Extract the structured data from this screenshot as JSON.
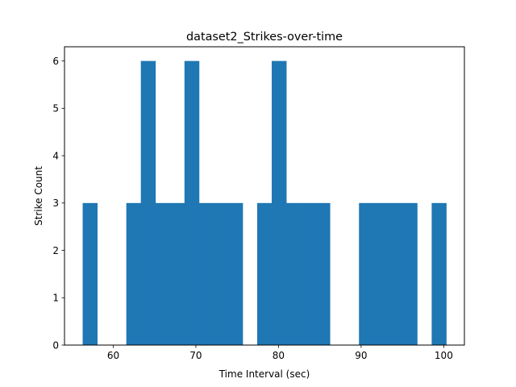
{
  "chart_data": {
    "type": "bar",
    "title": "dataset2_Strikes-over-time",
    "xlabel": "Time Interval (sec)",
    "ylabel": "Strike Count",
    "xlim": [
      54.1,
      102.5
    ],
    "ylim": [
      0,
      6.3
    ],
    "xticks": [
      60,
      70,
      80,
      90,
      100
    ],
    "yticks": [
      0,
      1,
      2,
      3,
      4,
      5,
      6
    ],
    "bin_width": 1.76,
    "bins": [
      {
        "x": 56.3,
        "count": 3
      },
      {
        "x": 58.06,
        "count": 0
      },
      {
        "x": 59.82,
        "count": 0
      },
      {
        "x": 61.58,
        "count": 3
      },
      {
        "x": 63.34,
        "count": 6
      },
      {
        "x": 65.1,
        "count": 3
      },
      {
        "x": 66.86,
        "count": 3
      },
      {
        "x": 68.62,
        "count": 6
      },
      {
        "x": 70.38,
        "count": 3
      },
      {
        "x": 72.14,
        "count": 3
      },
      {
        "x": 73.9,
        "count": 3
      },
      {
        "x": 75.66,
        "count": 0
      },
      {
        "x": 77.42,
        "count": 3
      },
      {
        "x": 79.18,
        "count": 6
      },
      {
        "x": 80.94,
        "count": 3
      },
      {
        "x": 82.7,
        "count": 3
      },
      {
        "x": 84.46,
        "count": 3
      },
      {
        "x": 86.22,
        "count": 0
      },
      {
        "x": 87.98,
        "count": 0
      },
      {
        "x": 89.74,
        "count": 3
      },
      {
        "x": 91.5,
        "count": 3
      },
      {
        "x": 93.26,
        "count": 3
      },
      {
        "x": 95.02,
        "count": 3
      },
      {
        "x": 96.78,
        "count": 0
      },
      {
        "x": 98.54,
        "count": 3
      }
    ],
    "bar_color": "#1f77b4",
    "grid": false,
    "legend": "none"
  }
}
